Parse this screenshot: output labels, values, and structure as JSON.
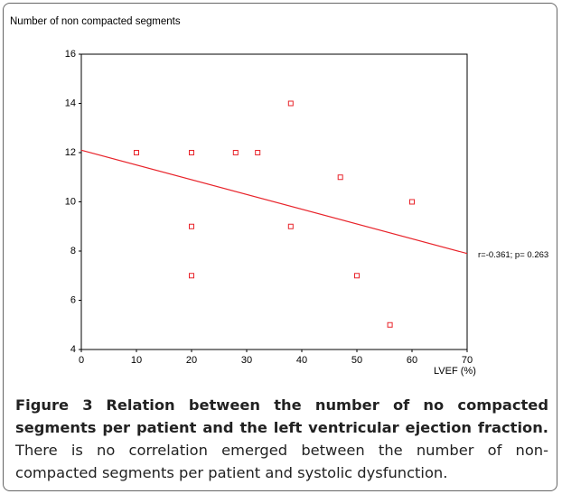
{
  "chart_data": {
    "type": "scatter",
    "ylabel": "Number of non compacted segments",
    "xlabel": "LVEF (%)",
    "annotation": "r=-0.361; p= 0.263",
    "series": [
      {
        "color": "#e8232a",
        "x": [
          10,
          20,
          20,
          20,
          28,
          32,
          38,
          38,
          47,
          50,
          56,
          60
        ],
        "values": [
          12,
          12,
          9,
          7,
          12,
          12,
          14,
          9,
          11,
          7,
          5,
          10
        ]
      }
    ],
    "regression": {
      "color": "#e8232a",
      "x": [
        0,
        70
      ],
      "values": [
        12.1,
        7.9
      ]
    },
    "xlim": [
      0,
      70
    ],
    "xticks": [
      0,
      10,
      20,
      30,
      40,
      50,
      60,
      70
    ],
    "ylim": [
      4,
      16
    ],
    "yticks": [
      4,
      6,
      8,
      10,
      12,
      14,
      16
    ]
  },
  "caption": {
    "label": "Figure 3",
    "title": "Relation between the number of no compacted segments per patient and the left ventricular ejection fraction.",
    "text": "There is no correlation emerged between the number of non-compacted segments per patient and systolic dysfunction."
  }
}
